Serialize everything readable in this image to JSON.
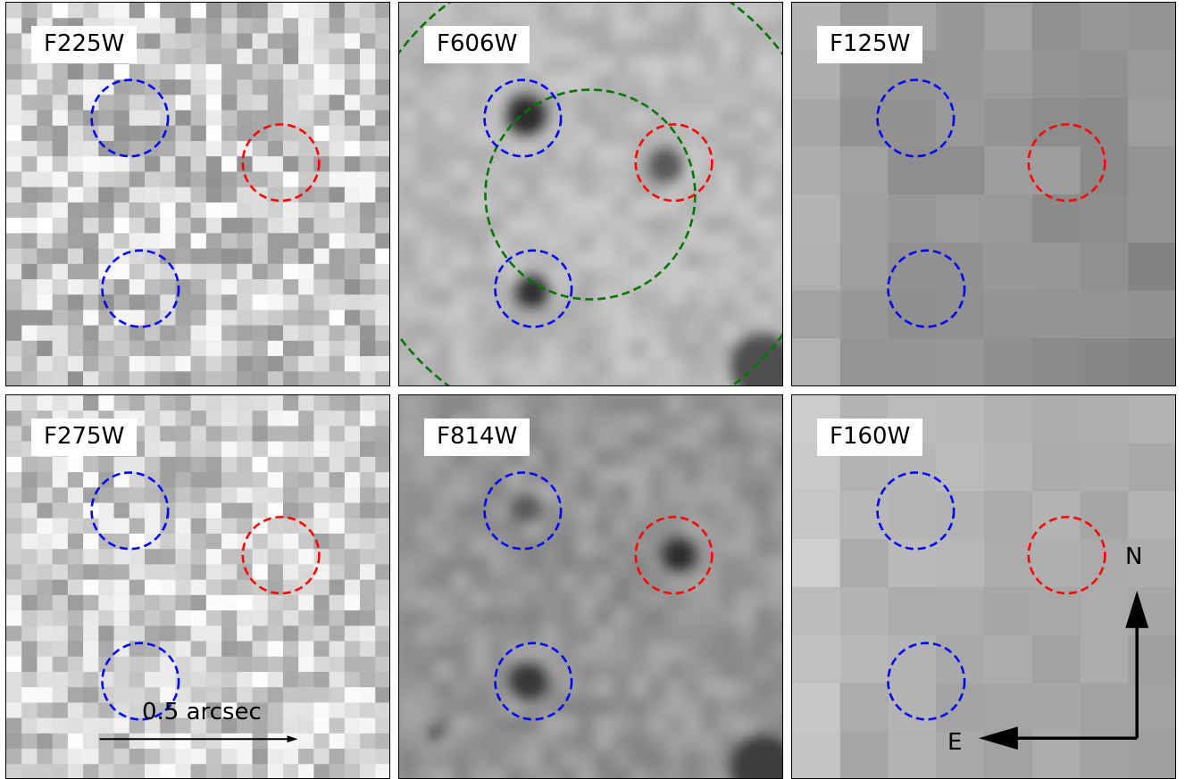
{
  "panels": [
    {
      "id": "f225w",
      "label": "F225W",
      "style": "pixel-noise-light"
    },
    {
      "id": "f606w",
      "label": "F606W",
      "style": "smooth-gray"
    },
    {
      "id": "f125w",
      "label": "F125W",
      "style": "coarse-gray"
    },
    {
      "id": "f275w",
      "label": "F275W",
      "style": "pixel-noise-light"
    },
    {
      "id": "f814w",
      "label": "F814W",
      "style": "smooth-gray-dark"
    },
    {
      "id": "f160w",
      "label": "F160W",
      "style": "coarse-gray-light"
    }
  ],
  "markers": {
    "blue_color": "#0000ff",
    "red_color": "#ff0000",
    "green_color": "#007700"
  },
  "scalebar": {
    "label": "0.5 arcsec"
  },
  "compass": {
    "north": "N",
    "east": "E"
  }
}
